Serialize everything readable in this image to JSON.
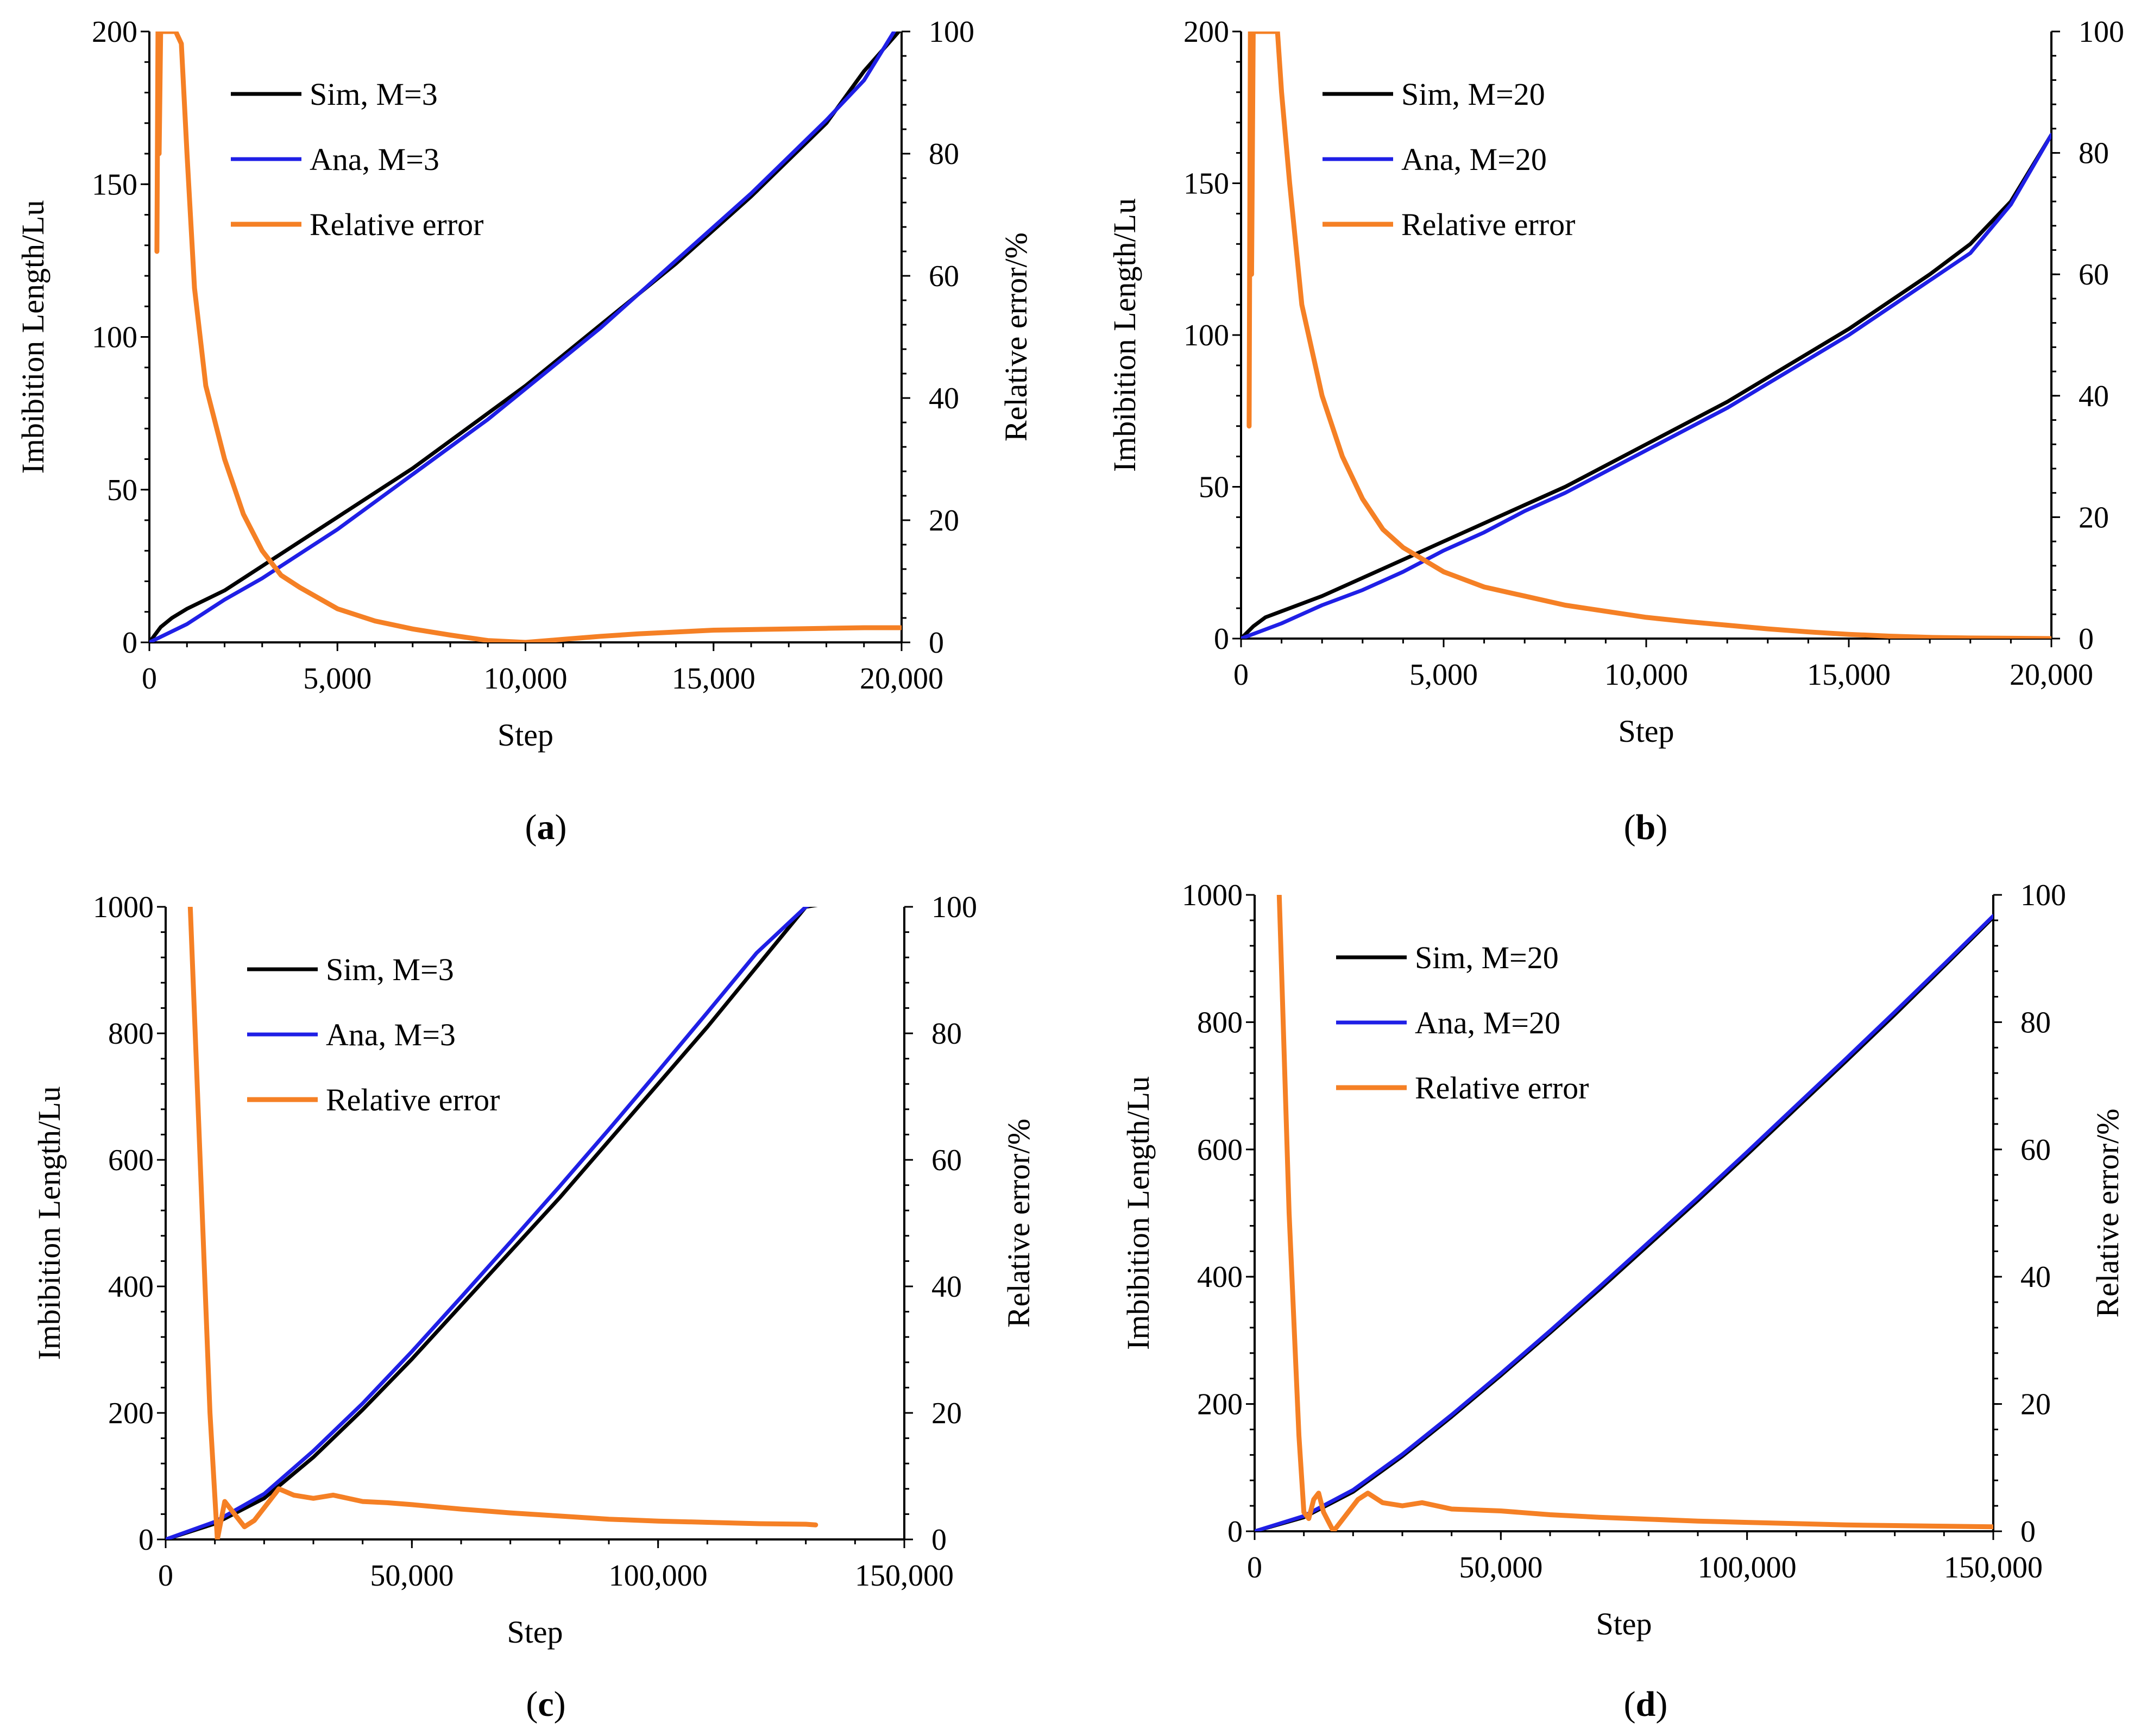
{
  "figure": {
    "panels": [
      {
        "id": "a",
        "label_open": "(",
        "label_letter": "a",
        "label_close": ")"
      },
      {
        "id": "b",
        "label_open": "(",
        "label_letter": "b",
        "label_close": ")"
      },
      {
        "id": "c",
        "label_open": "(",
        "label_letter": "c",
        "label_close": ")"
      },
      {
        "id": "d",
        "label_open": "(",
        "label_letter": "d",
        "label_close": ")"
      }
    ]
  },
  "colors": {
    "sim": "#000000",
    "ana": "#1f1fe6",
    "error": "#f58025"
  },
  "chart_data": [
    {
      "type": "line",
      "panel": "a",
      "xlabel": "Step",
      "ylabel": "Imbibition Length/Lu",
      "y2label": "Relative error/%",
      "xlim": [
        0,
        20000
      ],
      "ylim": [
        0,
        200
      ],
      "y2lim": [
        0,
        100
      ],
      "xticks": [
        0,
        5000,
        10000,
        15000,
        20000
      ],
      "xtick_labels": [
        "0",
        "5,000",
        "10,000",
        "15,000",
        "20,000"
      ],
      "yticks": [
        0,
        50,
        100,
        150,
        200
      ],
      "ytick_labels": [
        "0",
        "50",
        "100",
        "150",
        "200"
      ],
      "y2ticks": [
        0,
        20,
        40,
        60,
        80,
        100
      ],
      "y2tick_labels": [
        "0",
        "20",
        "40",
        "60",
        "80",
        "100"
      ],
      "legend": [
        "Sim, M=3",
        "Ana, M=3",
        "Relative error"
      ],
      "legend_position": "top-left",
      "series": [
        {
          "name": "Sim, M=3",
          "axis": "left",
          "color_key": "sim",
          "x": [
            0,
            300,
            600,
            1000,
            2000,
            3000,
            4000,
            5000,
            6000,
            7000,
            8000,
            9000,
            10000,
            11000,
            12000,
            13000,
            14000,
            15000,
            16000,
            17000,
            18000,
            19000,
            20000
          ],
          "y": [
            0,
            5,
            8,
            11,
            17,
            25,
            33,
            41,
            49,
            57,
            66,
            75,
            84,
            94,
            104,
            114,
            124,
            135,
            146,
            158,
            170,
            187,
            201
          ]
        },
        {
          "name": "Ana, M=3",
          "axis": "left",
          "color_key": "ana",
          "x": [
            0,
            1000,
            2000,
            3000,
            4000,
            5000,
            6000,
            7000,
            8000,
            9000,
            10000,
            11000,
            12000,
            13000,
            14000,
            15000,
            16000,
            17000,
            18000,
            19000,
            19800
          ],
          "y": [
            0,
            6,
            14,
            21,
            29,
            37,
            46,
            55,
            64,
            73,
            83,
            93,
            103,
            114,
            125,
            136,
            147,
            159,
            171,
            184,
            200
          ]
        },
        {
          "name": "Relative error",
          "axis": "right",
          "color_key": "error",
          "x": [
            200,
            230,
            260,
            300,
            700,
            850,
            1000,
            1200,
            1500,
            2000,
            2500,
            3000,
            3500,
            4000,
            5000,
            6000,
            7000,
            8000,
            9000,
            10000,
            11000,
            12000,
            13000,
            14000,
            15000,
            16000,
            17000,
            18000,
            19000,
            20000
          ],
          "y": [
            64,
            100,
            80,
            100,
            100,
            98,
            80,
            58,
            42,
            30,
            21,
            15,
            11,
            9,
            5.5,
            3.5,
            2.2,
            1.2,
            0.3,
            0,
            0.5,
            1.0,
            1.4,
            1.7,
            2.0,
            2.1,
            2.2,
            2.3,
            2.4,
            2.4
          ]
        }
      ]
    },
    {
      "type": "line",
      "panel": "b",
      "xlabel": "Step",
      "ylabel": "Imbibition Length/Lu",
      "y2label": "Relative error/%",
      "xlim": [
        0,
        20000
      ],
      "ylim": [
        0,
        200
      ],
      "y2lim": [
        0,
        100
      ],
      "xticks": [
        0,
        5000,
        10000,
        15000,
        20000
      ],
      "xtick_labels": [
        "0",
        "5,000",
        "10,000",
        "15,000",
        "20,000"
      ],
      "yticks": [
        0,
        50,
        100,
        150,
        200
      ],
      "ytick_labels": [
        "0",
        "50",
        "100",
        "150",
        "200"
      ],
      "y2ticks": [
        0,
        20,
        40,
        60,
        80,
        100
      ],
      "y2tick_labels": [
        "0",
        "20",
        "40",
        "60",
        "80",
        "100"
      ],
      "legend": [
        "Sim, M=20",
        "Ana, M=20",
        "Relative error"
      ],
      "legend_position": "top-left",
      "series": [
        {
          "name": "Sim, M=20",
          "axis": "left",
          "color_key": "sim",
          "x": [
            0,
            300,
            600,
            1000,
            2000,
            3000,
            4000,
            5000,
            6000,
            7000,
            8000,
            9000,
            10000,
            11000,
            12000,
            13000,
            14000,
            15000,
            16000,
            17000,
            18000,
            19000,
            20000
          ],
          "y": [
            0,
            4,
            7,
            9,
            14,
            20,
            26,
            32,
            38,
            44,
            50,
            57,
            64,
            71,
            78,
            86,
            94,
            102,
            111,
            120,
            130,
            144,
            166
          ]
        },
        {
          "name": "Ana, M=20",
          "axis": "left",
          "color_key": "ana",
          "x": [
            0,
            1000,
            2000,
            3000,
            4000,
            5000,
            6000,
            7000,
            8000,
            9000,
            10000,
            11000,
            12000,
            13000,
            14000,
            15000,
            16000,
            17000,
            18000,
            19000,
            20000
          ],
          "y": [
            0,
            5,
            11,
            16,
            22,
            29,
            35,
            42,
            48,
            55,
            62,
            69,
            76,
            84,
            92,
            100,
            109,
            118,
            127,
            143,
            166
          ]
        },
        {
          "name": "Relative error",
          "axis": "right",
          "color_key": "error",
          "x": [
            200,
            230,
            260,
            300,
            900,
            1000,
            1200,
            1500,
            2000,
            2500,
            3000,
            3500,
            4000,
            5000,
            6000,
            7000,
            8000,
            9000,
            10000,
            11000,
            12000,
            13000,
            14000,
            15000,
            16000,
            17000,
            18000,
            19000,
            20000
          ],
          "y": [
            35,
            100,
            60,
            100,
            100,
            90,
            75,
            55,
            40,
            30,
            23,
            18,
            15,
            11,
            8.5,
            7,
            5.5,
            4.5,
            3.5,
            2.8,
            2.2,
            1.6,
            1.1,
            0.7,
            0.4,
            0.2,
            0.1,
            0.05,
            0
          ]
        }
      ]
    },
    {
      "type": "line",
      "panel": "c",
      "xlabel": "Step",
      "ylabel": "Imbibition Length/Lu",
      "y2label": "Relative error/%",
      "xlim": [
        0,
        150000
      ],
      "ylim": [
        0,
        1000
      ],
      "y2lim": [
        0,
        100
      ],
      "xticks": [
        0,
        50000,
        100000,
        150000
      ],
      "xtick_labels": [
        "0",
        "50,000",
        "100,000",
        "150,000"
      ],
      "yticks": [
        0,
        200,
        400,
        600,
        800,
        1000
      ],
      "ytick_labels": [
        "0",
        "200",
        "400",
        "600",
        "800",
        "1000"
      ],
      "y2ticks": [
        0,
        20,
        40,
        60,
        80,
        100
      ],
      "y2tick_labels": [
        "0",
        "20",
        "40",
        "60",
        "80",
        "100"
      ],
      "legend": [
        "Sim, M=3",
        "Ana, M=3",
        "Relative error"
      ],
      "legend_position": "top-left",
      "series": [
        {
          "name": "Sim, M=3",
          "axis": "left",
          "color_key": "sim",
          "x": [
            0,
            10000,
            20000,
            30000,
            40000,
            50000,
            60000,
            70000,
            80000,
            90000,
            100000,
            110000,
            120000,
            130000,
            134000
          ],
          "y": [
            0,
            25,
            65,
            130,
            205,
            285,
            370,
            455,
            540,
            630,
            720,
            810,
            905,
            1000,
            1005
          ]
        },
        {
          "name": "Ana, M=3",
          "axis": "left",
          "color_key": "ana",
          "x": [
            0,
            10000,
            20000,
            30000,
            40000,
            50000,
            60000,
            70000,
            80000,
            90000,
            100000,
            110000,
            120000,
            130000,
            132000
          ],
          "y": [
            0,
            28,
            72,
            140,
            215,
            297,
            383,
            470,
            558,
            648,
            740,
            833,
            927,
            1000,
            1008
          ]
        },
        {
          "name": "Relative error",
          "axis": "right",
          "color_key": "error",
          "x": [
            5000,
            7000,
            9000,
            10500,
            12000,
            14000,
            16000,
            18000,
            21000,
            23000,
            26000,
            30000,
            34000,
            40000,
            45000,
            50000,
            60000,
            70000,
            80000,
            90000,
            100000,
            110000,
            120000,
            130000,
            132000
          ],
          "y": [
            100,
            60,
            20,
            0,
            6,
            4,
            2,
            3,
            6,
            8,
            7,
            6.5,
            7,
            6,
            5.8,
            5.5,
            4.8,
            4.2,
            3.7,
            3.2,
            2.9,
            2.7,
            2.5,
            2.4,
            2.3
          ]
        }
      ]
    },
    {
      "type": "line",
      "panel": "d",
      "xlabel": "Step",
      "ylabel": "Imbibition Length/Lu",
      "y2label": "Relative error/%",
      "xlim": [
        0,
        150000
      ],
      "ylim": [
        0,
        1000
      ],
      "y2lim": [
        0,
        100
      ],
      "xticks": [
        0,
        50000,
        100000,
        150000
      ],
      "xtick_labels": [
        "0",
        "50,000",
        "100,000",
        "150,000"
      ],
      "yticks": [
        0,
        200,
        400,
        600,
        800,
        1000
      ],
      "ytick_labels": [
        "0",
        "200",
        "400",
        "600",
        "800",
        "1000"
      ],
      "y2ticks": [
        0,
        20,
        40,
        60,
        80,
        100
      ],
      "y2tick_labels": [
        "0",
        "20",
        "40",
        "60",
        "80",
        "100"
      ],
      "legend": [
        "Sim, M=20",
        "Ana, M=20",
        "Relative error"
      ],
      "legend_position": "top-left",
      "series": [
        {
          "name": "Sim, M=20",
          "axis": "left",
          "color_key": "sim",
          "x": [
            0,
            10000,
            20000,
            30000,
            40000,
            50000,
            60000,
            70000,
            80000,
            90000,
            100000,
            110000,
            120000,
            130000,
            140000,
            150000
          ],
          "y": [
            0,
            22,
            62,
            118,
            180,
            245,
            312,
            380,
            450,
            520,
            592,
            665,
            738,
            812,
            888,
            965
          ]
        },
        {
          "name": "Ana, M=20",
          "axis": "left",
          "color_key": "ana",
          "x": [
            0,
            10000,
            20000,
            30000,
            40000,
            50000,
            60000,
            70000,
            80000,
            90000,
            100000,
            110000,
            120000,
            130000,
            140000,
            150000
          ],
          "y": [
            0,
            24,
            65,
            121,
            183,
            248,
            315,
            384,
            454,
            524,
            596,
            669,
            742,
            816,
            891,
            967
          ]
        },
        {
          "name": "Relative error",
          "axis": "right",
          "color_key": "error",
          "x": [
            5000,
            7000,
            9000,
            10000,
            11000,
            12000,
            13000,
            14000,
            16000,
            18000,
            21000,
            23000,
            26000,
            30000,
            34000,
            40000,
            50000,
            60000,
            70000,
            80000,
            90000,
            100000,
            110000,
            120000,
            130000,
            140000,
            150000
          ],
          "y": [
            100,
            50,
            15,
            3,
            2,
            5,
            6,
            3,
            0,
            2,
            5,
            6,
            4.5,
            4,
            4.5,
            3.5,
            3.2,
            2.6,
            2.2,
            1.9,
            1.6,
            1.4,
            1.2,
            1.0,
            0.9,
            0.8,
            0.7
          ]
        }
      ]
    }
  ]
}
